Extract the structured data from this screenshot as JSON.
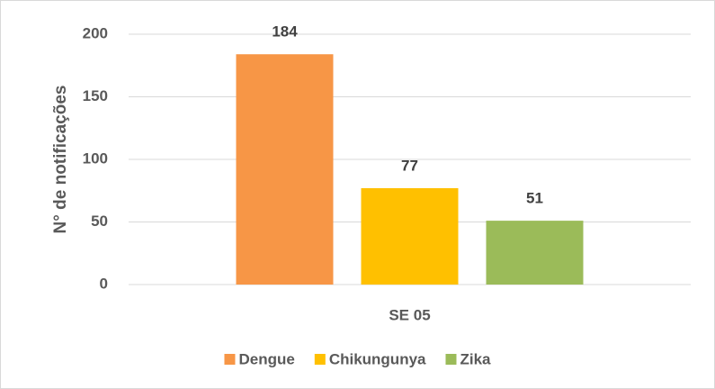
{
  "chart_data": {
    "type": "bar",
    "y_label": "N° de notificações",
    "categories": [
      "SE 05"
    ],
    "series": [
      {
        "name": "Dengue",
        "color": "#f79646",
        "values": [
          184
        ]
      },
      {
        "name": "Chikungunya",
        "color": "#ffc000",
        "values": [
          77
        ]
      },
      {
        "name": "Zika",
        "color": "#9bbb59",
        "values": [
          51
        ]
      }
    ],
    "ylim": [
      0,
      200
    ],
    "yticks": [
      0,
      50,
      100,
      150,
      200
    ],
    "grid": true,
    "legend": "bottom"
  }
}
